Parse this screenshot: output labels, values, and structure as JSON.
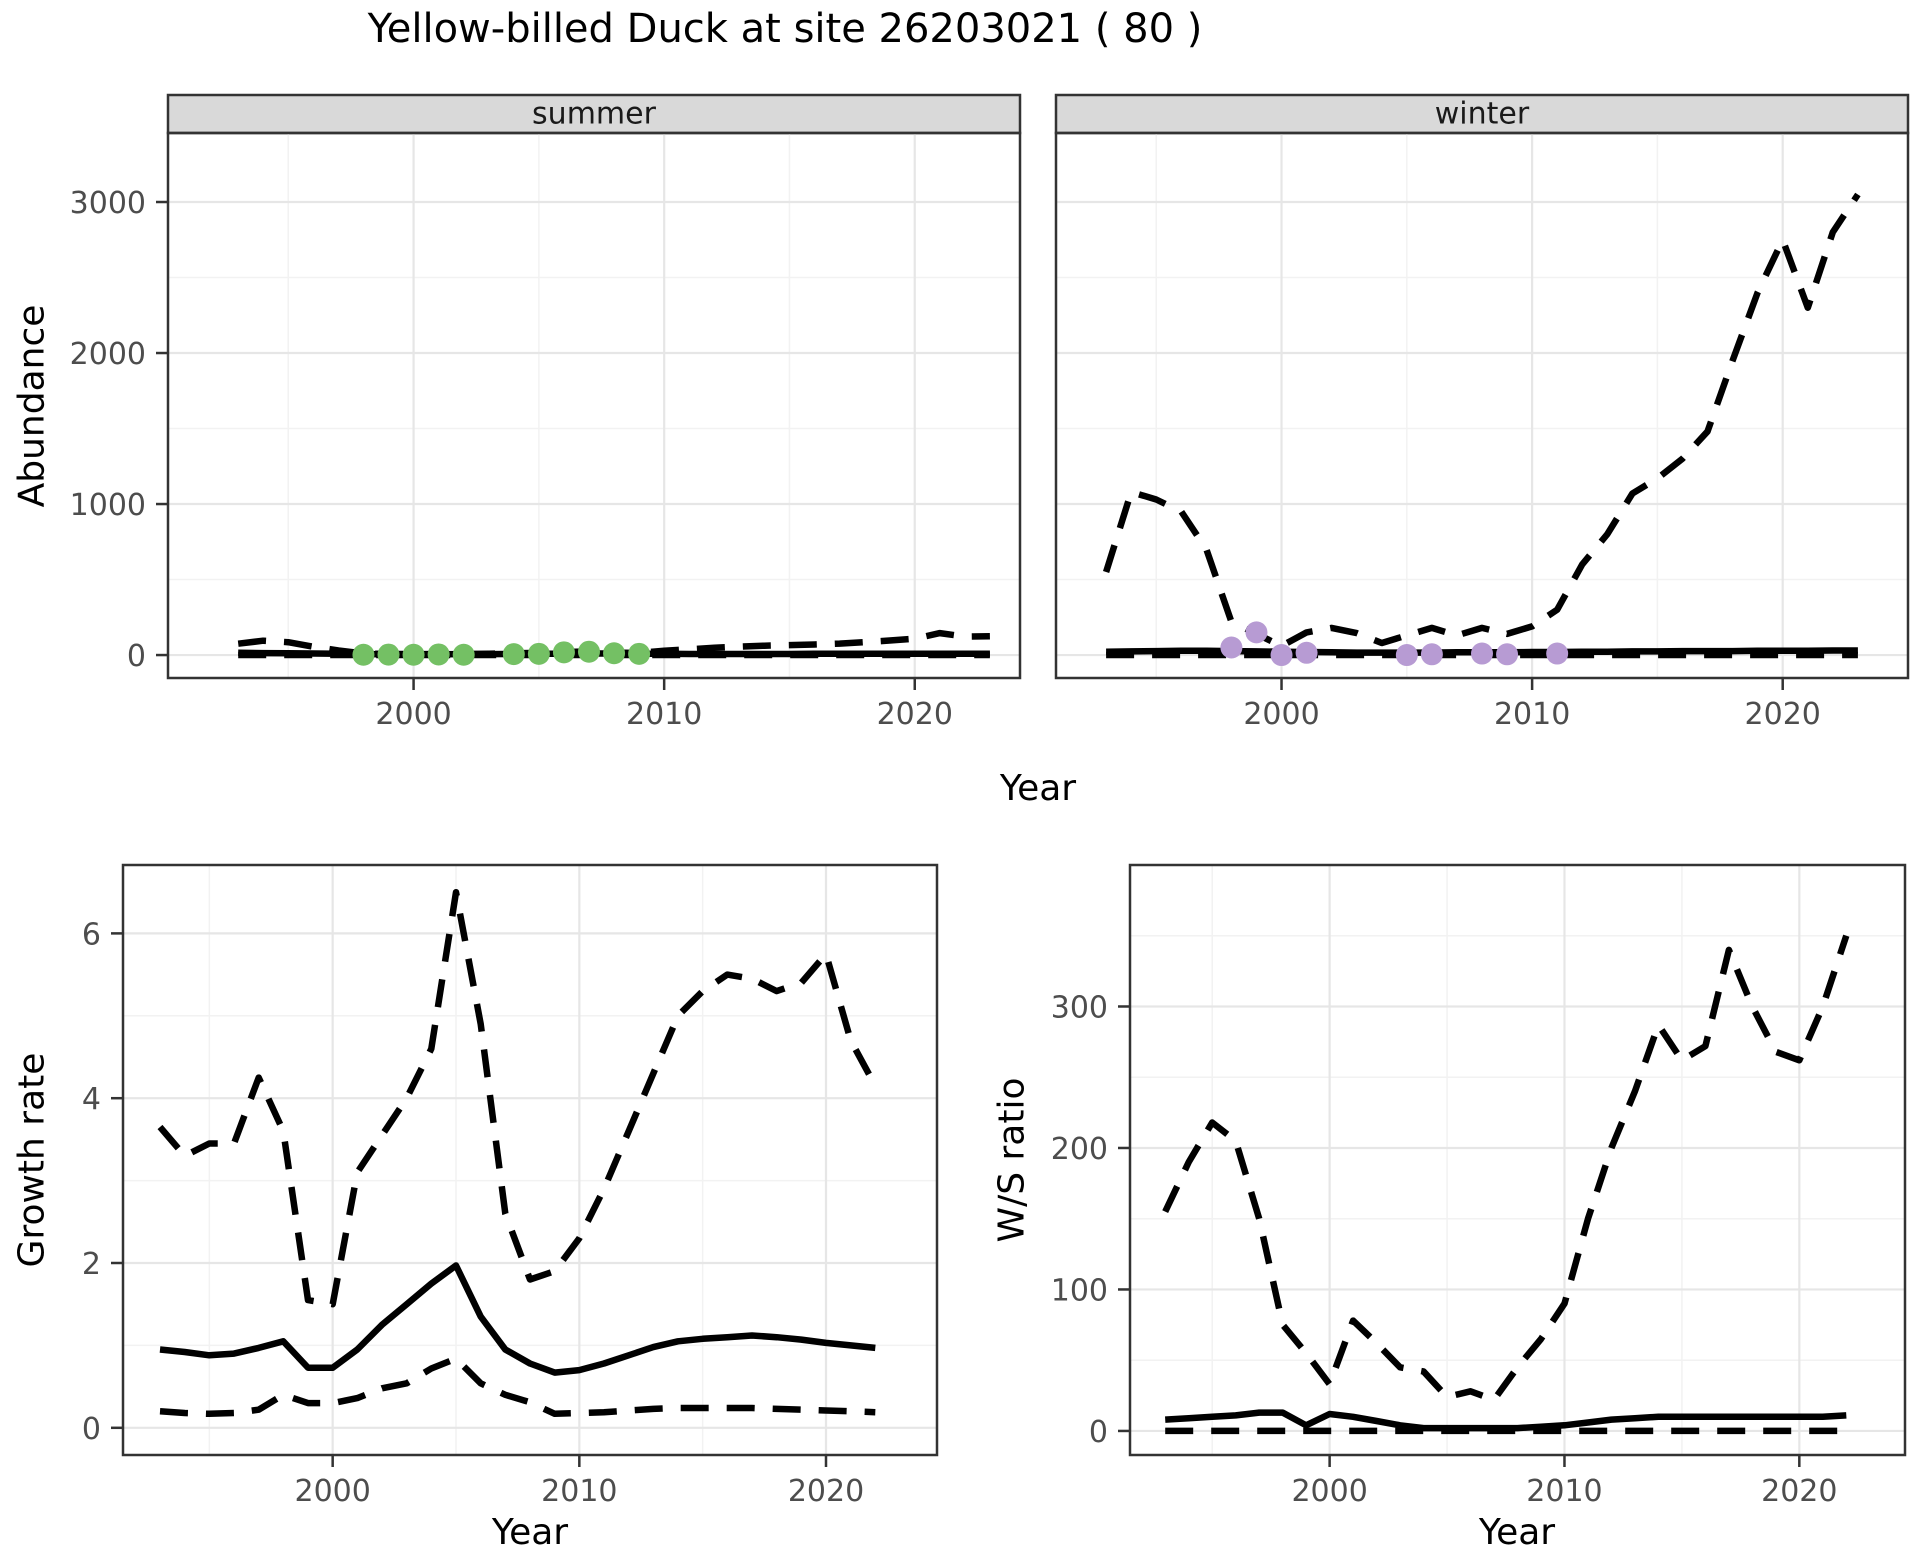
{
  "title": "Yellow-billed Duck at site 26203021 ( 80 )",
  "colors": {
    "background": "#ffffff",
    "strip_bg": "#d9d9d9",
    "panel_border": "#333333",
    "grid_major": "#e6e6e6",
    "grid_minor": "#f2f2f2",
    "line": "#000000",
    "tick_text": "#4d4d4d",
    "summer_point": "#74c064",
    "winter_point": "#b79bd3"
  },
  "chart_data": [
    {
      "type": "line",
      "title": "Yellow-billed Duck at site 26203021 ( 80 )",
      "xlabel": "Year",
      "ylabel": "Abundance",
      "xlim": [
        1991,
        2024
      ],
      "ylim": [
        -152,
        3457
      ],
      "xticks": [
        2000,
        2010,
        2020
      ],
      "yticks": [
        0,
        1000,
        2000,
        3000
      ],
      "xminor": [
        1995,
        2005,
        2015
      ],
      "yminor": [
        500,
        1500,
        2500
      ],
      "grid": "on",
      "legend": "none",
      "x": [
        1993,
        1994,
        1995,
        1996,
        1997,
        1998,
        1999,
        2000,
        2001,
        2002,
        2003,
        2004,
        2005,
        2006,
        2007,
        2008,
        2009,
        2010,
        2011,
        2012,
        2013,
        2014,
        2015,
        2016,
        2017,
        2018,
        2019,
        2020,
        2021,
        2022,
        2023
      ],
      "facets": [
        {
          "label": "summer",
          "series": [
            {
              "name": "mean",
              "style": "solid",
              "values": [
                15,
                13,
                12,
                10,
                8,
                6,
                5,
                5,
                5,
                6,
                6,
                7,
                8,
                9,
                10,
                10,
                9,
                8,
                7,
                7,
                7,
                7,
                7,
                8,
                8,
                8,
                9,
                9,
                9,
                9,
                8
              ]
            },
            {
              "name": "upper_ci",
              "style": "dashed",
              "values": [
                75,
                95,
                85,
                55,
                30,
                10,
                7,
                6,
                7,
                7,
                9,
                12,
                14,
                20,
                24,
                16,
                14,
                28,
                38,
                48,
                56,
                62,
                66,
                70,
                76,
                86,
                96,
                108,
                145,
                122,
                125
              ]
            },
            {
              "name": "lower_ci",
              "style": "dashed",
              "values": [
                0,
                0,
                0,
                0,
                0,
                0,
                0,
                0,
                0,
                0,
                0,
                0,
                0,
                0,
                0,
                0,
                0,
                0,
                0,
                0,
                0,
                0,
                0,
                0,
                0,
                0,
                0,
                0,
                0,
                0,
                0
              ]
            }
          ],
          "points": {
            "x": [
              1998,
              1999,
              2000,
              2001,
              2002,
              2004,
              2005,
              2006,
              2007,
              2008,
              2009
            ],
            "y": [
              2,
              3,
              2,
              4,
              2,
              6,
              8,
              18,
              22,
              12,
              8
            ]
          }
        },
        {
          "label": "winter",
          "series": [
            {
              "name": "mean",
              "style": "solid",
              "values": [
                22,
                24,
                26,
                28,
                28,
                26,
                24,
                22,
                20,
                18,
                16,
                16,
                16,
                16,
                18,
                18,
                18,
                20,
                20,
                22,
                22,
                24,
                24,
                26,
                26,
                26,
                28,
                28,
                28,
                30,
                30
              ]
            },
            {
              "name": "upper_ci",
              "style": "dashed",
              "values": [
                550,
                1080,
                1030,
                950,
                700,
                220,
                140,
                60,
                150,
                180,
                145,
                80,
                130,
                180,
                130,
                180,
                140,
                190,
                300,
                600,
                800,
                1070,
                1170,
                1300,
                1480,
                1950,
                2400,
                2750,
                2300,
                2800,
                3050
              ]
            },
            {
              "name": "lower_ci",
              "style": "dashed",
              "values": [
                0,
                0,
                0,
                0,
                0,
                0,
                0,
                0,
                0,
                0,
                0,
                0,
                0,
                0,
                0,
                0,
                0,
                0,
                0,
                0,
                0,
                0,
                0,
                0,
                0,
                0,
                0,
                0,
                0,
                0,
                0
              ]
            }
          ],
          "points": {
            "x": [
              1998,
              1999,
              2000,
              2001,
              2005,
              2006,
              2008,
              2009,
              2011
            ],
            "y": [
              50,
              150,
              0,
              15,
              0,
              5,
              10,
              5,
              10
            ]
          }
        }
      ]
    },
    {
      "type": "line",
      "title": "",
      "xlabel": "Year",
      "ylabel": "Growth rate",
      "xlim": [
        1991.5,
        2024.5
      ],
      "ylim": [
        -0.33,
        6.83
      ],
      "xticks": [
        2000,
        2010,
        2020
      ],
      "yticks": [
        0,
        2,
        4,
        6
      ],
      "xminor": [
        1995,
        2005,
        2015
      ],
      "yminor": [
        1,
        3,
        5
      ],
      "grid": "on",
      "legend": "none",
      "x": [
        1993,
        1994,
        1995,
        1996,
        1997,
        1998,
        1999,
        2000,
        2001,
        2002,
        2003,
        2004,
        2005,
        2006,
        2007,
        2008,
        2009,
        2010,
        2011,
        2012,
        2013,
        2014,
        2015,
        2016,
        2017,
        2018,
        2019,
        2020,
        2021,
        2022
      ],
      "series": [
        {
          "name": "mean",
          "style": "solid",
          "values": [
            0.95,
            0.92,
            0.88,
            0.9,
            0.97,
            1.05,
            0.73,
            0.73,
            0.95,
            1.25,
            1.5,
            1.75,
            1.97,
            1.35,
            0.95,
            0.78,
            0.67,
            0.7,
            0.78,
            0.88,
            0.98,
            1.05,
            1.08,
            1.1,
            1.12,
            1.1,
            1.07,
            1.03,
            1.0,
            0.97
          ]
        },
        {
          "name": "upper_ci",
          "style": "dashed",
          "values": [
            3.65,
            3.3,
            3.45,
            3.45,
            4.25,
            3.6,
            1.55,
            1.5,
            3.1,
            3.55,
            4.0,
            4.6,
            6.5,
            4.9,
            2.6,
            1.8,
            1.9,
            2.3,
            2.9,
            3.6,
            4.3,
            5.0,
            5.3,
            5.5,
            5.45,
            5.3,
            5.4,
            5.75,
            4.7,
            4.15
          ]
        },
        {
          "name": "lower_ci",
          "style": "dashed",
          "values": [
            0.2,
            0.18,
            0.17,
            0.18,
            0.22,
            0.4,
            0.3,
            0.3,
            0.36,
            0.48,
            0.54,
            0.72,
            0.84,
            0.54,
            0.4,
            0.31,
            0.17,
            0.18,
            0.19,
            0.21,
            0.23,
            0.24,
            0.24,
            0.24,
            0.24,
            0.23,
            0.22,
            0.21,
            0.2,
            0.19
          ]
        }
      ]
    },
    {
      "type": "line",
      "title": "",
      "xlabel": "Year",
      "ylabel": "W/S ratio",
      "xlim": [
        1991.5,
        2024.5
      ],
      "ylim": [
        -17,
        400
      ],
      "xticks": [
        2000,
        2010,
        2020
      ],
      "yticks": [
        0,
        100,
        200,
        300
      ],
      "xminor": [
        1995,
        2005,
        2015
      ],
      "yminor": [
        50,
        150,
        250,
        350
      ],
      "grid": "on",
      "legend": "none",
      "x": [
        1993,
        1994,
        1995,
        1996,
        1997,
        1998,
        1999,
        2000,
        2001,
        2002,
        2003,
        2004,
        2005,
        2006,
        2007,
        2008,
        2009,
        2010,
        2011,
        2012,
        2013,
        2014,
        2015,
        2016,
        2017,
        2018,
        2019,
        2020,
        2021,
        2022
      ],
      "series": [
        {
          "name": "mean",
          "style": "solid",
          "values": [
            8,
            9,
            10,
            11,
            13,
            13,
            4,
            12,
            10,
            7,
            4,
            2,
            2,
            2,
            2,
            2,
            3,
            4,
            6,
            8,
            9,
            10,
            10,
            10,
            10,
            10,
            10,
            10,
            10,
            11
          ]
        },
        {
          "name": "upper_ci",
          "style": "dashed",
          "values": [
            155,
            190,
            218,
            205,
            150,
            75,
            55,
            33,
            78,
            62,
            45,
            42,
            24,
            28,
            22,
            45,
            65,
            90,
            150,
            200,
            240,
            287,
            262,
            272,
            340,
            300,
            268,
            262,
            300,
            350
          ]
        },
        {
          "name": "lower_ci",
          "style": "dashed",
          "values": [
            0,
            0,
            0,
            0,
            0,
            0,
            0,
            0,
            0,
            0,
            0,
            0,
            0,
            0,
            0,
            0,
            0,
            0,
            0,
            0,
            0,
            0,
            0,
            0,
            0,
            0,
            0,
            0,
            0,
            0
          ]
        }
      ]
    }
  ]
}
